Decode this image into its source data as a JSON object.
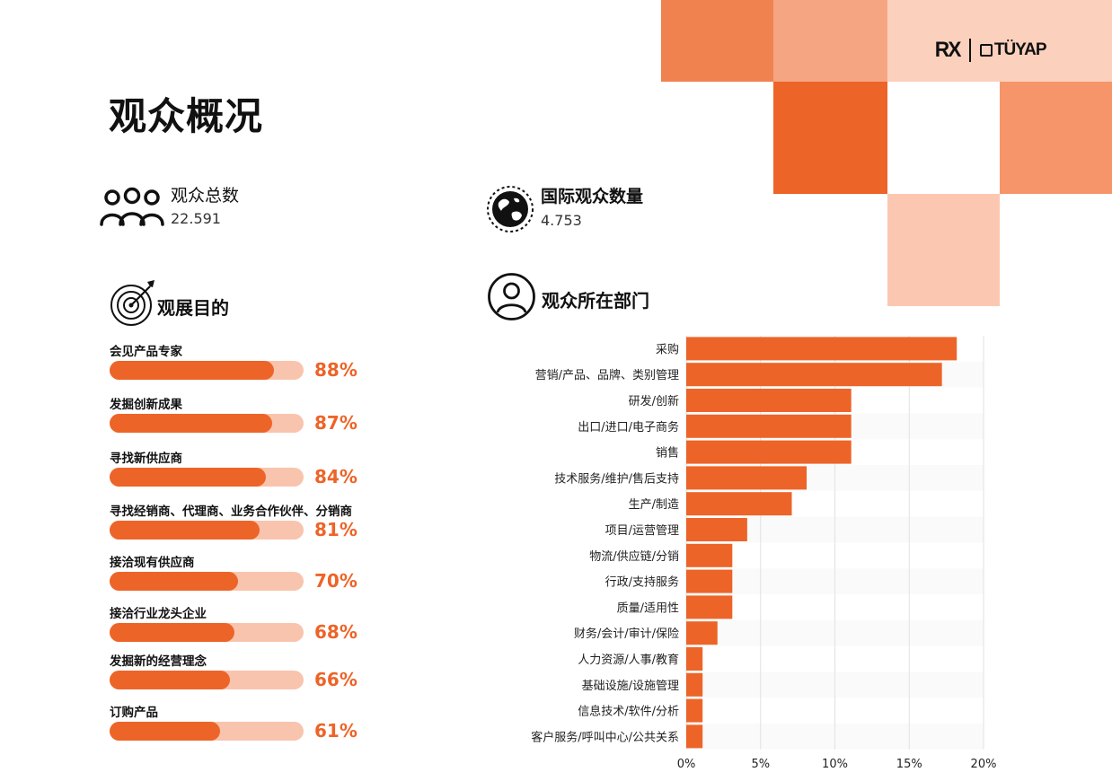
{
  "header": {
    "title": "观众概况",
    "logo_left": "RX",
    "logo_right": "TÜYAP",
    "decor_colors": [
      "#f0824f",
      "#f6a583",
      "#fbd0bd",
      "#ed6428",
      "#f7956a",
      "#fcc7b1"
    ]
  },
  "stats": {
    "total": {
      "label": "观众总数",
      "value": "22.591",
      "icon": "people-icon"
    },
    "international": {
      "label": "国际观众数量",
      "value": "4.753",
      "icon": "globe-icon"
    }
  },
  "purpose": {
    "title": "观展目的",
    "icon": "target-icon",
    "fill_color": "#ed6428",
    "track_color": "#f9c4ae",
    "items": [
      {
        "label": "会见产品专家",
        "percent": 88,
        "percent_text": "88%"
      },
      {
        "label": "发掘创新成果",
        "percent": 87,
        "percent_text": "87%"
      },
      {
        "label": "寻找新供应商",
        "percent": 84,
        "percent_text": "84%"
      },
      {
        "label": "寻找经销商、代理商、业务合作伙伴、分销商",
        "percent": 81,
        "percent_text": "81%"
      },
      {
        "label": "接洽现有供应商",
        "percent": 70,
        "percent_text": "70%"
      },
      {
        "label": "接洽行业龙头企业",
        "percent": 68,
        "percent_text": "68%"
      },
      {
        "label": "发掘新的经营理念",
        "percent": 66,
        "percent_text": "66%"
      },
      {
        "label": "订购产品",
        "percent": 61,
        "percent_text": "61%"
      }
    ]
  },
  "chart_data": {
    "type": "bar",
    "orientation": "horizontal",
    "title": "观众所在部门",
    "icon": "person-icon",
    "bar_color": "#ed6428",
    "categories": [
      "采购",
      "营销/产品、品牌、类别管理",
      "研发/创新",
      "出口/进口/电子商务",
      "销售",
      "技术服务/维护/售后支持",
      "生产/制造",
      "项目/运营管理",
      "物流/供应链/分销",
      "行政/支持服务",
      "质量/适用性",
      "财务/会计/审计/保险",
      "人力资源/人事/教育",
      "基础设施/设施管理",
      "信息技术/软件/分析",
      "客户服务/呼叫中心/公共关系"
    ],
    "values": [
      18.2,
      17.2,
      11.1,
      11.1,
      11.1,
      8.1,
      7.1,
      4.1,
      3.1,
      3.1,
      3.1,
      2.1,
      1.1,
      1.1,
      1.1,
      1.1
    ],
    "xlim": [
      0,
      20
    ],
    "xticks": [
      0,
      5,
      10,
      15,
      20
    ],
    "xtick_labels": [
      "0%",
      "5%",
      "10%",
      "15%",
      "20%"
    ],
    "grid": true,
    "xlabel": "",
    "ylabel": ""
  }
}
